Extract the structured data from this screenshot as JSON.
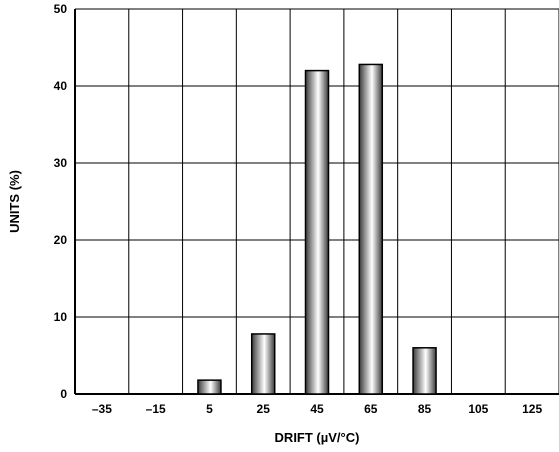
{
  "chart_data": {
    "type": "bar",
    "title": "",
    "xlabel": "DRIFT (µV/°C)",
    "ylabel": "UNITS (%)",
    "categories": [
      "–35",
      "–15",
      "5",
      "25",
      "45",
      "65",
      "85",
      "105",
      "125"
    ],
    "values": [
      0,
      0,
      1.8,
      7.8,
      42,
      42.8,
      6,
      0,
      0
    ],
    "ylim": [
      0,
      50
    ],
    "yticks": [
      0,
      10,
      20,
      30,
      40,
      50
    ],
    "grid": true,
    "legend": "none",
    "bar_fill": "gradient-gray",
    "colors": {
      "bar_dark": "#3a3a3a",
      "bar_light": "#ffffff",
      "grid": "#000000"
    }
  }
}
